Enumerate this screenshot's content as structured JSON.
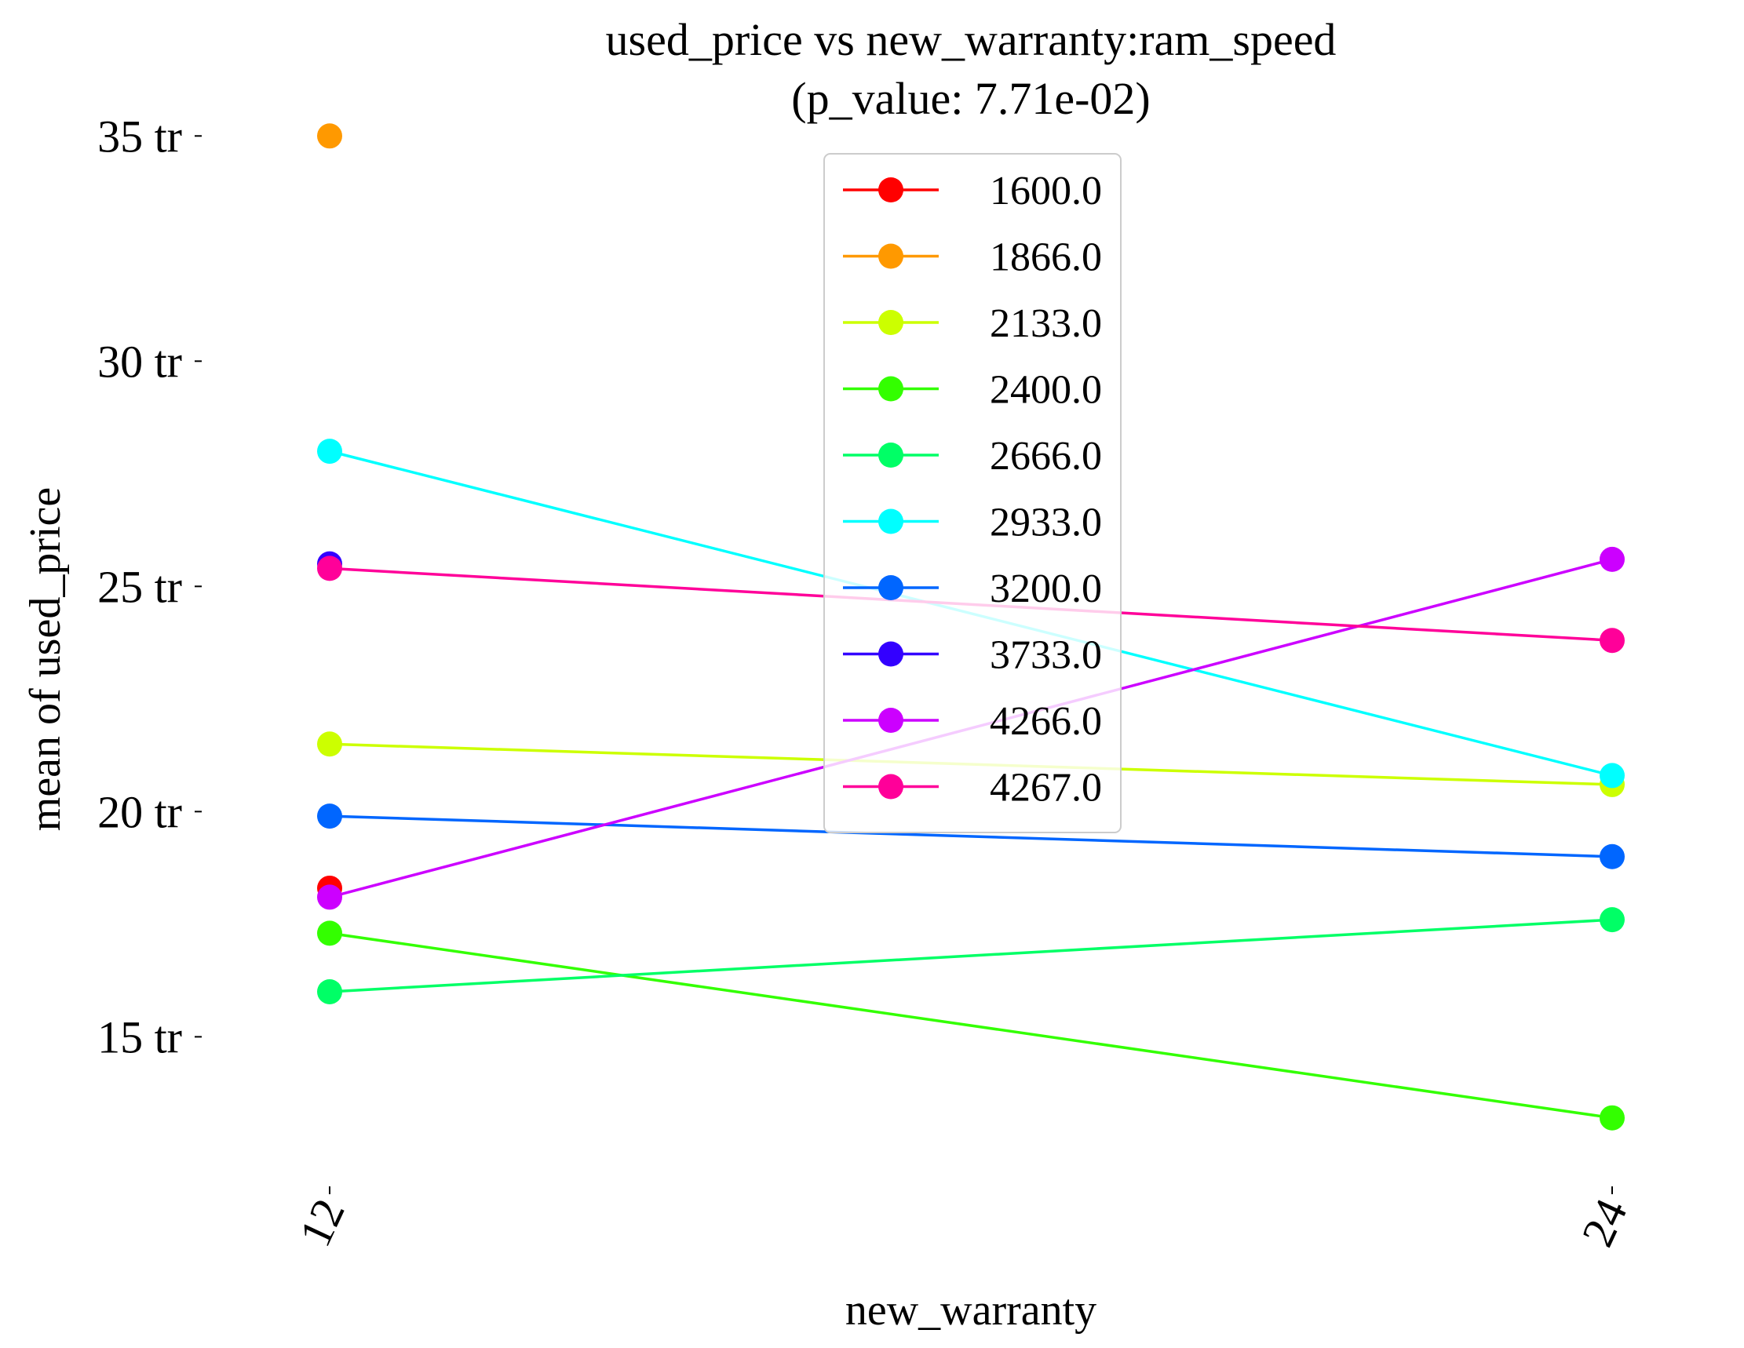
{
  "chart_data": {
    "type": "line",
    "title": "used_price vs new_warranty:ram_speed",
    "subtitle": "(p_value: 7.71e-02)",
    "xlabel": "new_warranty",
    "ylabel": "mean of used_price",
    "categories": [
      "12",
      "24"
    ],
    "yticks": [
      15,
      20,
      25,
      30,
      35
    ],
    "ytick_labels": [
      "15 tr",
      "20 tr",
      "25 tr",
      "30 tr",
      "35 tr"
    ],
    "ylim": [
      11.0,
      37.2
    ],
    "grid": false,
    "legend_position": "top-center",
    "series": [
      {
        "name": "1600.0",
        "color": "#ff0000",
        "values": [
          18.3,
          null
        ]
      },
      {
        "name": "1866.0",
        "color": "#ff9900",
        "values": [
          35.0,
          null
        ]
      },
      {
        "name": "2133.0",
        "color": "#ccff00",
        "values": [
          21.5,
          20.6
        ]
      },
      {
        "name": "2400.0",
        "color": "#33ff00",
        "values": [
          17.3,
          13.2
        ]
      },
      {
        "name": "2666.0",
        "color": "#00ff66",
        "values": [
          16.0,
          17.6
        ]
      },
      {
        "name": "2933.0",
        "color": "#00ffff",
        "values": [
          28.0,
          20.8
        ]
      },
      {
        "name": "3200.0",
        "color": "#0066ff",
        "values": [
          19.9,
          19.0
        ]
      },
      {
        "name": "3733.0",
        "color": "#3300ff",
        "values": [
          25.5,
          null
        ]
      },
      {
        "name": "4266.0",
        "color": "#cc00ff",
        "values": [
          18.1,
          25.6
        ]
      },
      {
        "name": "4267.0",
        "color": "#ff0099",
        "values": [
          25.4,
          23.8
        ]
      }
    ]
  }
}
